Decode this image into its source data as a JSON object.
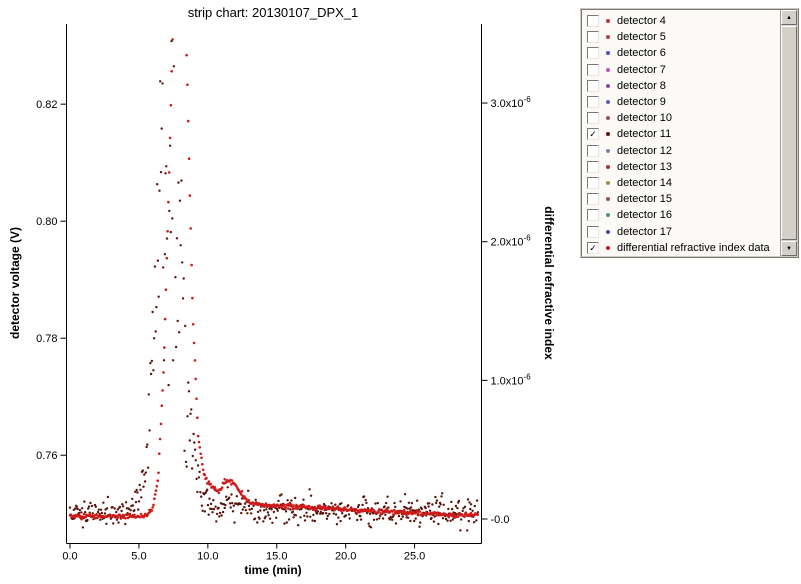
{
  "title": "strip chart: 20130107_DPX_1",
  "axes": {
    "x": {
      "label": "time (min)",
      "min": 0,
      "max": 29.6,
      "ticks": [
        {
          "v": 0,
          "label": "0.0"
        },
        {
          "v": 5,
          "label": "5.0"
        },
        {
          "v": 10,
          "label": "10.0"
        },
        {
          "v": 15,
          "label": "15.0"
        },
        {
          "v": 20,
          "label": "20.0"
        },
        {
          "v": 25,
          "label": "25.0"
        }
      ]
    },
    "y_left": {
      "label": "detector voltage (V)",
      "min": 0.745,
      "max": 0.8337,
      "ticks": [
        {
          "v": 0.76,
          "label": "0.76"
        },
        {
          "v": 0.78,
          "label": "0.78"
        },
        {
          "v": 0.8,
          "label": "0.80"
        },
        {
          "v": 0.82,
          "label": "0.82"
        }
      ]
    },
    "y_right": {
      "label": "differential refractive index",
      "min": -1.73e-07,
      "max": 3.57e-06,
      "ticks": [
        {
          "v": 0,
          "label": "-0.0"
        },
        {
          "v": 1e-06,
          "label": "1.0x10",
          "exp": "-6"
        },
        {
          "v": 2e-06,
          "label": "2.0x10",
          "exp": "-6"
        },
        {
          "v": 3e-06,
          "label": "3.0x10",
          "exp": "-6"
        }
      ]
    }
  },
  "legend": {
    "items": [
      {
        "label": "detector 4",
        "color": "#c83232",
        "checked": false
      },
      {
        "label": "detector 5",
        "color": "#b04040",
        "checked": false
      },
      {
        "label": "detector 6",
        "color": "#5050b4",
        "checked": false
      },
      {
        "label": "detector 7",
        "color": "#c050c0",
        "checked": false
      },
      {
        "label": "detector 8",
        "color": "#9048a8",
        "checked": false
      },
      {
        "label": "detector 9",
        "color": "#6060c0",
        "checked": false
      },
      {
        "label": "detector 10",
        "color": "#a05050",
        "checked": false
      },
      {
        "label": "detector 11",
        "color": "#5a1208",
        "checked": true
      },
      {
        "label": "detector 12",
        "color": "#8080a0",
        "checked": false
      },
      {
        "label": "detector 13",
        "color": "#a03838",
        "checked": false
      },
      {
        "label": "detector 14",
        "color": "#a09040",
        "checked": false
      },
      {
        "label": "detector 15",
        "color": "#905858",
        "checked": false
      },
      {
        "label": "detector 16",
        "color": "#509090",
        "checked": false
      },
      {
        "label": "detector 17",
        "color": "#405090",
        "checked": false
      },
      {
        "label": "differential refractive index data",
        "color": "#cf1a1a",
        "checked": true
      }
    ],
    "check_glyph": "✓",
    "scroll_up_glyph": "▲",
    "scroll_down_glyph": "▼"
  },
  "chart_data": {
    "type": "scatter",
    "title": "strip chart: 20130107_DPX_1",
    "xlabel": "time (min)",
    "x_range": [
      0,
      29.6
    ],
    "ylabel_left": "detector voltage (V)",
    "y_left_range": [
      0.745,
      0.8337
    ],
    "ylabel_right": "differential refractive index",
    "y_right_range": [
      -1.73e-07,
      3.57e-06
    ],
    "grid": false,
    "legend_position": "outside-right",
    "series": [
      {
        "name": "detector 11",
        "axis": "left",
        "color": "#5a1208",
        "style": "noisy-scatter",
        "marker_px": 1.2,
        "sample_step": 0.055,
        "seed": 1337,
        "baseline": 0.7503,
        "noise_base": 0.0011,
        "noise_peak_scale": 0.24,
        "envelope": [
          [
            0,
            0.7503
          ],
          [
            4.2,
            0.7503
          ],
          [
            5,
            0.7522
          ],
          [
            5.5,
            0.759
          ],
          [
            6,
            0.778
          ],
          [
            6.5,
            0.799
          ],
          [
            7,
            0.813
          ],
          [
            7.3,
            0.819
          ],
          [
            7.6,
            0.812
          ],
          [
            8,
            0.793
          ],
          [
            8.5,
            0.772
          ],
          [
            9,
            0.758
          ],
          [
            9.5,
            0.7528
          ],
          [
            10,
            0.7517
          ],
          [
            12,
            0.751
          ],
          [
            15,
            0.7506
          ],
          [
            20,
            0.7504
          ],
          [
            25,
            0.7503
          ],
          [
            29.6,
            0.7503
          ]
        ]
      },
      {
        "name": "differential refractive index data",
        "axis": "right",
        "color": "#cf1a1a",
        "style": "dotted-line",
        "marker_px": 1.3,
        "sample_step": 0.06,
        "seed": 777,
        "noise": 8e-09,
        "keypoints": [
          [
            0,
            2e-08
          ],
          [
            5,
            2e-08
          ],
          [
            5.6,
            3e-08
          ],
          [
            6,
            8e-08
          ],
          [
            6.4,
            3e-07
          ],
          [
            6.8,
            1.1e-06
          ],
          [
            7.2,
            2.5e-06
          ],
          [
            7.5,
            3.7e-06
          ],
          [
            7.8,
            5e-06
          ],
          [
            8.1,
            4.8e-06
          ],
          [
            8.5,
            3.2e-06
          ],
          [
            8.9,
            1.5e-06
          ],
          [
            9.3,
            6e-07
          ],
          [
            9.7,
            3.2e-07
          ],
          [
            10.2,
            2.4e-07
          ],
          [
            10.8,
            2e-07
          ],
          [
            11.3,
            2.8e-07
          ],
          [
            11.9,
            2.6e-07
          ],
          [
            12.4,
            1.8e-07
          ],
          [
            13,
            1.2e-07
          ],
          [
            14,
            1e-07
          ],
          [
            16,
            9e-08
          ],
          [
            18,
            8e-08
          ],
          [
            20,
            7e-08
          ],
          [
            22,
            6e-08
          ],
          [
            24,
            5e-08
          ],
          [
            26,
            4e-08
          ],
          [
            28,
            3e-08
          ],
          [
            29.6,
            3e-08
          ]
        ]
      }
    ]
  }
}
